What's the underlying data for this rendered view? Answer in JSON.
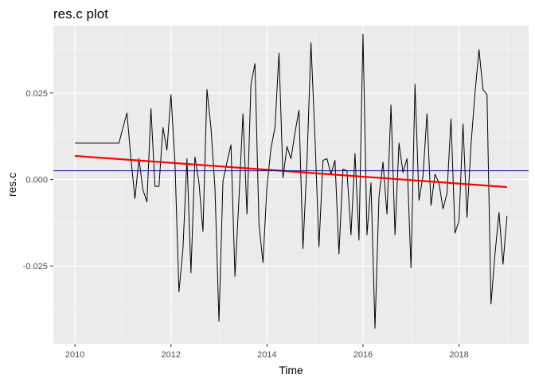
{
  "chart_data": {
    "type": "line",
    "title": "res.c plot",
    "xlabel": "Time",
    "ylabel": "res.c",
    "xlim": [
      2009.55,
      2019.45
    ],
    "ylim": [
      -0.0475,
      0.0445
    ],
    "x_ticks": [
      2010,
      2012,
      2014,
      2016,
      2018
    ],
    "x_tick_labels": [
      "2010",
      "2012",
      "2014",
      "2016",
      "2018"
    ],
    "y_ticks": [
      -0.025,
      0.0,
      0.025
    ],
    "y_tick_labels": [
      "-0.025",
      "0.000",
      "0.025"
    ],
    "grid": true,
    "series": [
      {
        "role": "data",
        "color": "#000000",
        "x_start": 2010.0,
        "x_step": 0.08333,
        "values": [
          0.0105,
          0.0105,
          0.0105,
          0.0105,
          0.0105,
          0.0105,
          0.0105,
          0.0105,
          0.0105,
          0.0105,
          0.0105,
          0.0105,
          0.015,
          0.0192,
          0.006,
          -0.0055,
          0.006,
          -0.003,
          -0.0065,
          0.0205,
          -0.002,
          -0.002,
          0.015,
          0.0085,
          0.0245,
          0.005,
          -0.0325,
          -0.02,
          0.006,
          -0.027,
          0.0065,
          -0.001,
          -0.015,
          0.026,
          0.015,
          -0.0025,
          -0.041,
          -0.0005,
          0.005,
          0.01,
          -0.028,
          -0.0055,
          0.019,
          -0.01,
          0.0275,
          0.0335,
          -0.013,
          -0.024,
          -0.002,
          0.009,
          0.015,
          0.0365,
          0.0005,
          0.0095,
          0.006,
          0.0135,
          0.02,
          -0.02,
          0.005,
          0.0395,
          0.012,
          -0.0195,
          0.0055,
          0.006,
          0.0015,
          0.0055,
          -0.0215,
          0.003,
          0.0025,
          -0.016,
          0.0075,
          -0.0175,
          0.042,
          -0.016,
          -0.001,
          -0.043,
          -0.005,
          0.005,
          -0.01,
          0.0215,
          -0.016,
          0.0105,
          0.002,
          0.006,
          -0.0255,
          0.0275,
          -0.006,
          0.001,
          0.019,
          -0.0075,
          0.0015,
          -0.001,
          -0.0085,
          -0.004,
          0.0175,
          -0.0155,
          -0.012,
          0.016,
          -0.011,
          0.01,
          0.025,
          0.0375,
          0.026,
          0.0245,
          -0.036,
          -0.0215,
          -0.0095,
          -0.0245,
          -0.0105
        ]
      },
      {
        "role": "trend",
        "color": "#ff0000",
        "x": [
          2010.0,
          2019.0
        ],
        "values": [
          0.0068,
          -0.0022
        ]
      },
      {
        "role": "mean",
        "color": "#00008b",
        "x": [
          2009.55,
          2019.45
        ],
        "values": [
          0.0025,
          0.0025
        ]
      }
    ]
  }
}
